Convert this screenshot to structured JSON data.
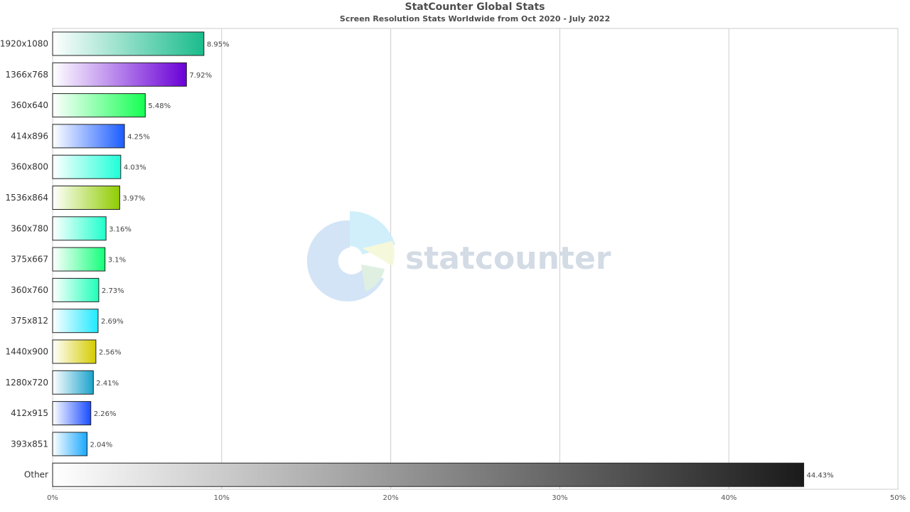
{
  "chart_data": {
    "type": "bar",
    "orientation": "horizontal",
    "title": "StatCounter Global Stats",
    "subtitle": "Screen Resolution Stats Worldwide from Oct 2020 - July 2022",
    "categories": [
      "1920x1080",
      "1366x768",
      "360x640",
      "414x896",
      "360x800",
      "1536x864",
      "360x780",
      "375x667",
      "360x760",
      "375x812",
      "1440x900",
      "1280x720",
      "412x915",
      "393x851",
      "Other"
    ],
    "values": [
      8.95,
      7.92,
      5.48,
      4.25,
      4.03,
      3.97,
      3.16,
      3.1,
      2.73,
      2.69,
      2.56,
      2.41,
      2.26,
      2.04,
      44.43
    ],
    "value_labels": [
      "8.95%",
      "7.92%",
      "5.48%",
      "4.25%",
      "4.03%",
      "3.97%",
      "3.16%",
      "3.1%",
      "2.73%",
      "2.69%",
      "2.56%",
      "2.41%",
      "2.26%",
      "2.04%",
      "44.43%"
    ],
    "colors": [
      "#1abc8c",
      "#6a00d6",
      "#14ff52",
      "#1a5cff",
      "#1fffd8",
      "#8fcc00",
      "#1fffcc",
      "#14ff7a",
      "#1fffb8",
      "#1fe9ff",
      "#d4cc00",
      "#1aa3cc",
      "#1a4cff",
      "#1aa8ff",
      "#1a1a1a"
    ],
    "xlim": [
      0,
      50
    ],
    "x_ticks": [
      0,
      10,
      20,
      30,
      40,
      50
    ],
    "x_tick_labels": [
      "0%",
      "10%",
      "20%",
      "30%",
      "40%",
      "50%"
    ],
    "grid": true,
    "watermark": "statcounter"
  }
}
